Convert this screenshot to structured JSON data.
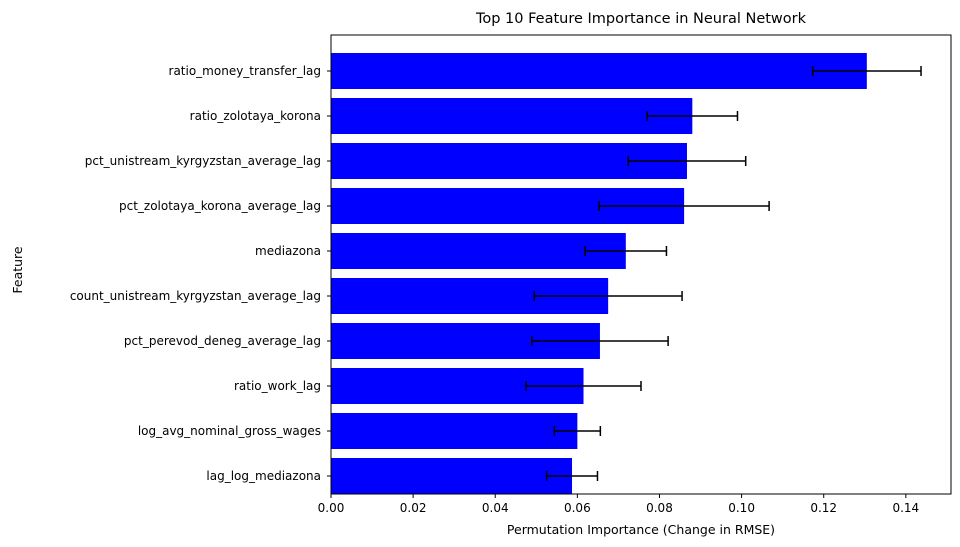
{
  "chart_data": {
    "type": "bar",
    "orientation": "horizontal",
    "title": "Top 10 Feature Importance in Neural Network",
    "xlabel": "Permutation Importance (Change in RMSE)",
    "ylabel": "Feature",
    "xlim": [
      0.0,
      0.151
    ],
    "xticks": [
      0.0,
      0.02,
      0.04,
      0.06,
      0.08,
      0.1,
      0.12,
      0.14
    ],
    "xtick_labels": [
      "0.00",
      "0.02",
      "0.04",
      "0.06",
      "0.08",
      "0.10",
      "0.12",
      "0.14"
    ],
    "grid": false,
    "bar_color": "#0000ff",
    "errorbar_color": "#000000",
    "categories": [
      "ratio_money_transfer_lag",
      "ratio_zolotaya_korona",
      "pct_unistream_kyrgyzstan_average_lag",
      "pct_zolotaya_korona_average_lag",
      "mediazona",
      "count_unistream_kyrgyzstan_average_lag",
      "pct_perevod_deneg_average_lag",
      "ratio_work_lag",
      "log_avg_nominal_gross_wages",
      "lag_log_mediazona"
    ],
    "values": [
      0.1305,
      0.088,
      0.0867,
      0.086,
      0.0718,
      0.0675,
      0.0655,
      0.0615,
      0.06,
      0.0587
    ],
    "errors": [
      0.0132,
      0.011,
      0.0143,
      0.0207,
      0.0099,
      0.018,
      0.0166,
      0.014,
      0.0056,
      0.0062
    ]
  }
}
